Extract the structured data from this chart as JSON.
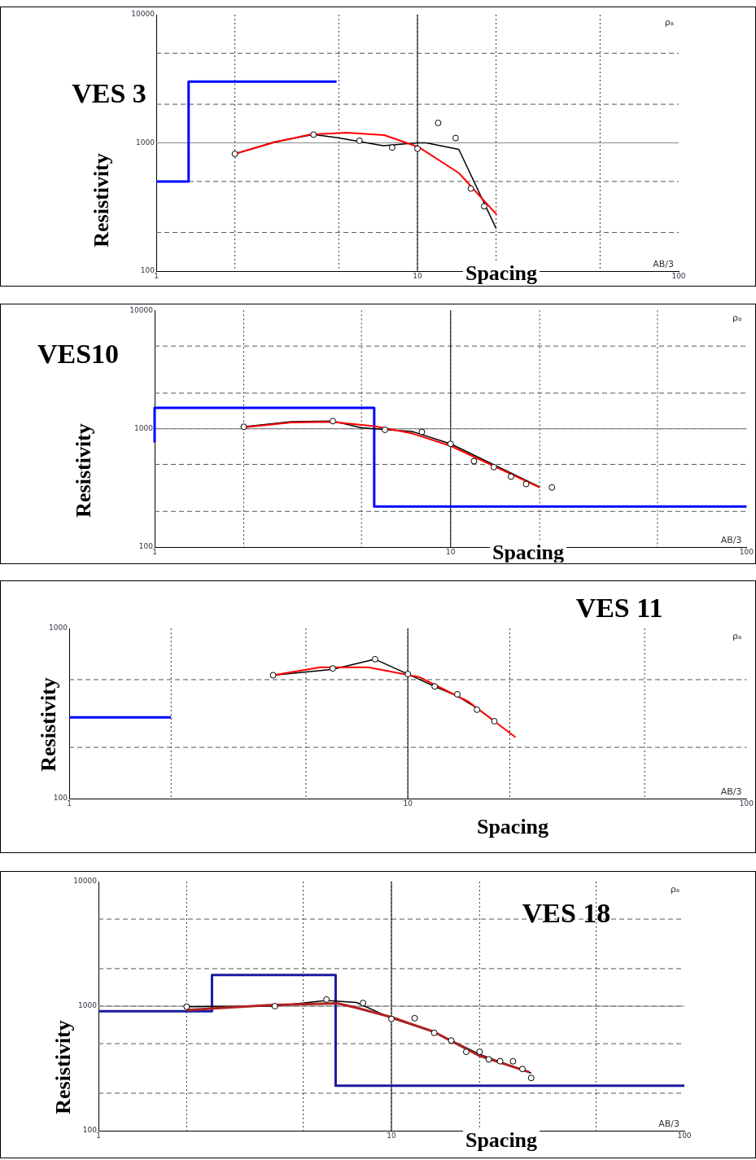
{
  "chart_data": [
    {
      "type": "line",
      "title": "VES 3",
      "xlabel": "Spacing",
      "ylabel": "Resistivity",
      "annotations": [
        "ρₐ",
        "AB/3"
      ],
      "log": "xy",
      "grid": true,
      "ref_lines": [
        {
          "axis": "x",
          "value": 10,
          "color": "#222222"
        },
        {
          "axis": "y",
          "value": 1000,
          "color": "#888888"
        }
      ],
      "legend": false,
      "xlim": [
        1,
        100
      ],
      "ylim": [
        100,
        10000
      ],
      "xticks": [
        1,
        {
          "value": 2,
          "label": null
        },
        {
          "value": 5,
          "label": null
        },
        10,
        {
          "value": 20,
          "label": null
        },
        {
          "value": 50,
          "label": null
        },
        100
      ],
      "yticks": [
        100,
        {
          "value": 200,
          "label": null
        },
        {
          "value": 500,
          "label": null
        },
        1000,
        {
          "value": 2000,
          "label": null
        },
        {
          "value": 5000,
          "label": null
        },
        10000
      ],
      "series": [
        {
          "type": "scatter",
          "marker": "circle",
          "color": "#000000",
          "x": [
            2,
            4,
            6,
            8,
            10,
            12,
            14,
            16,
            18
          ],
          "values": [
            820,
            1160,
            1040,
            920,
            900,
            1430,
            1090,
            440,
            320
          ]
        },
        {
          "type": "line",
          "color": "#000000",
          "x": [
            2,
            2.84,
            4,
            4.9,
            7.4,
            10,
            10.8,
            14.4,
            20
          ],
          "values": [
            820,
            1020,
            1160,
            1100,
            950,
            1000,
            1000,
            890,
            215
          ]
        },
        {
          "type": "line",
          "color": "#ff0000",
          "x": [
            2,
            2.84,
            3.88,
            5.35,
            7.47,
            10.1,
            14.4,
            20.1
          ],
          "values": [
            820,
            1010,
            1160,
            1200,
            1150,
            927,
            582,
            276
          ]
        },
        {
          "type": "step",
          "color": "#0000ff",
          "x": [
            1,
            1.33,
            4.9
          ],
          "values": [
            500,
            3000,
            3000
          ]
        }
      ]
    },
    {
      "type": "line",
      "title": "VES10",
      "xlabel": "Spacing",
      "ylabel": "Resistivity",
      "annotations": [
        "ρₐ",
        "AB/3"
      ],
      "log": "xy",
      "grid": true,
      "ref_lines": [
        {
          "axis": "x",
          "value": 10,
          "color": "#222222"
        },
        {
          "axis": "y",
          "value": 1000,
          "color": "#888888"
        }
      ],
      "legend": false,
      "xlim": [
        1,
        100
      ],
      "ylim": [
        100,
        10000
      ],
      "xticks": [
        1,
        {
          "value": 2,
          "label": null
        },
        {
          "value": 5,
          "label": null
        },
        10,
        {
          "value": 20,
          "label": null
        },
        {
          "value": 50,
          "label": null
        },
        100
      ],
      "yticks": [
        100,
        {
          "value": 200,
          "label": null
        },
        {
          "value": 500,
          "label": null
        },
        1000,
        {
          "value": 2000,
          "label": null
        },
        {
          "value": 5000,
          "label": null
        },
        10000
      ],
      "series": [
        {
          "type": "scatter",
          "marker": "circle",
          "color": "#000000",
          "x": [
            2,
            4,
            6,
            8,
            10,
            12,
            14,
            16,
            18,
            22
          ],
          "values": [
            1040,
            1160,
            980,
            940,
            745,
            532,
            474,
            394,
            341,
            319
          ]
        },
        {
          "type": "line",
          "color": "#000000",
          "x": [
            2,
            2.89,
            4,
            5,
            6,
            7.4,
            10,
            20
          ],
          "values": [
            1040,
            1150,
            1160,
            1020,
            983,
            950,
            745,
            322
          ]
        },
        {
          "type": "line",
          "color": "#ff0000",
          "x": [
            2,
            2.89,
            3.96,
            5.52,
            7.38,
            10,
            20
          ],
          "values": [
            1028,
            1130,
            1143,
            1051,
            915,
            716,
            319
          ]
        },
        {
          "type": "step",
          "color": "#0000ff",
          "x": [
            1,
            1,
            5.52,
            100
          ],
          "values": [
            765,
            1500,
            220,
            220
          ]
        }
      ]
    },
    {
      "type": "line",
      "title": "VES 11",
      "xlabel": "Spacing",
      "ylabel": "Resistivity",
      "annotations": [
        "ρₐ",
        "AB/3"
      ],
      "log": "xy",
      "grid": true,
      "ref_lines": [
        {
          "axis": "x",
          "value": 10,
          "color": "#222222"
        }
      ],
      "legend": false,
      "xlim": [
        1,
        100
      ],
      "ylim": [
        100,
        1000
      ],
      "xticks": [
        1,
        {
          "value": 2,
          "label": null
        },
        {
          "value": 5,
          "label": null
        },
        10,
        {
          "value": 20,
          "label": null
        },
        {
          "value": 50,
          "label": null
        },
        100
      ],
      "yticks": [
        100,
        {
          "value": 200,
          "label": null
        },
        {
          "value": 500,
          "label": null
        },
        1000
      ],
      "series": [
        {
          "type": "scatter",
          "marker": "circle",
          "color": "#000000",
          "x": [
            4,
            6,
            8,
            10,
            12,
            14,
            16,
            18
          ],
          "values": [
            531,
            582,
            659,
            539,
            456,
            410,
            333,
            285
          ]
        },
        {
          "type": "line",
          "color": "#000000",
          "x": [
            4,
            6,
            8,
            10,
            12,
            14,
            16,
            18
          ],
          "values": [
            531,
            575,
            659,
            539,
            456,
            400,
            340,
            285
          ]
        },
        {
          "type": "line",
          "color": "#ff0000",
          "x": [
            4,
            5.51,
            7.65,
            10.8,
            15.1,
            20.8
          ],
          "values": [
            531,
            591,
            591,
            518,
            371,
            229
          ]
        },
        {
          "type": "step",
          "color": "#0000ff",
          "x": [
            1,
            2
          ],
          "values": [
            300,
            300
          ]
        }
      ]
    },
    {
      "type": "line",
      "title": "VES 18",
      "xlabel": "Spacing",
      "ylabel": "Resistivity",
      "annotations": [
        "ρₐ",
        "AB/3"
      ],
      "log": "xy",
      "grid": true,
      "ref_lines": [
        {
          "axis": "x",
          "value": 10,
          "color": "#222222"
        },
        {
          "axis": "y",
          "value": 1000,
          "color": "#888888"
        }
      ],
      "legend": false,
      "xlim": [
        1,
        100
      ],
      "ylim": [
        100,
        10000
      ],
      "xticks": [
        1,
        {
          "value": 2,
          "label": null
        },
        {
          "value": 5,
          "label": null
        },
        10,
        {
          "value": 20,
          "label": null
        },
        {
          "value": 50,
          "label": null
        },
        100
      ],
      "yticks": [
        100,
        {
          "value": 200,
          "label": null
        },
        {
          "value": 500,
          "label": null
        },
        1000,
        {
          "value": 2000,
          "label": null
        },
        {
          "value": 5000,
          "label": null
        },
        10000
      ],
      "series": [
        {
          "type": "scatter",
          "marker": "circle",
          "color": "#000000",
          "x": [
            2,
            4,
            6,
            8,
            10,
            12,
            14,
            16,
            18,
            20,
            21.5,
            23.5,
            26,
            28,
            30
          ],
          "values": [
            990,
            1000,
            1130,
            1060,
            790,
            800,
            610,
            530,
            430,
            430,
            374,
            361,
            361,
            313,
            265
          ]
        },
        {
          "type": "line",
          "color": "#000000",
          "x": [
            2,
            4,
            6,
            7.6,
            10,
            14,
            20,
            30
          ],
          "values": [
            990,
            1000,
            1110,
            1070,
            800,
            620,
            410,
            290
          ]
        },
        {
          "type": "line",
          "color": "#b22222",
          "x": [
            2,
            3.83,
            6.52,
            7.55,
            10,
            13.9,
            19.9,
            29.6
          ],
          "values": [
            932,
            1018,
            1054,
            974,
            816,
            625,
            401,
            295
          ]
        },
        {
          "type": "step",
          "color": "#1a1aa0",
          "x": [
            1,
            2.44,
            6.45,
            100
          ],
          "values": [
            910,
            1780,
            230,
            230
          ]
        }
      ]
    }
  ]
}
